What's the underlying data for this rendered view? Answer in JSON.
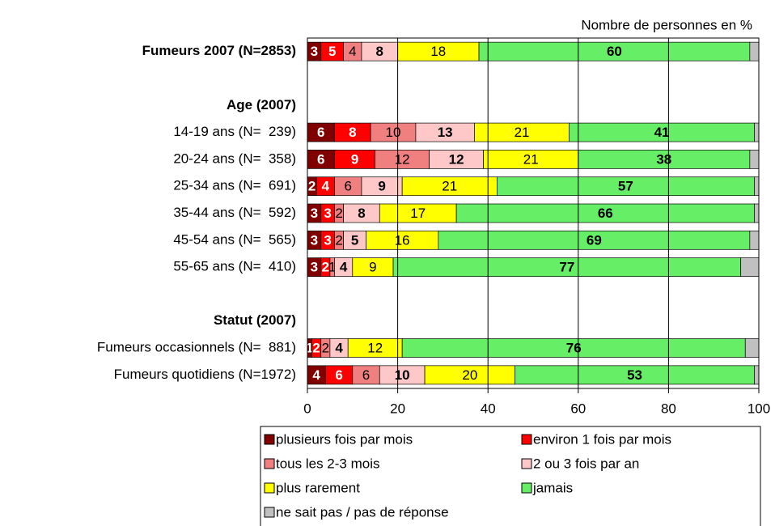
{
  "chart_data": {
    "type": "stacked_barh",
    "axis_title": "Nombre de personnes en %",
    "categories": [
      "Fumeurs 2007 (N=2853)",
      null,
      "Age (2007)",
      "14-19 ans (N=  239)",
      "20-24 ans (N=  358)",
      "25-34 ans (N=  691)",
      "35-44 ans (N=  592)",
      "45-54 ans (N=  565)",
      "55-65 ans (N=  410)",
      null,
      "Statut (2007)",
      "Fumeurs occasionnels (N=  881)",
      "Fumeurs quotidiens (N=1972)"
    ],
    "series": [
      {
        "name": "plusieurs fois par mois",
        "color": "#800000",
        "labels": true,
        "values": [
          3,
          null,
          null,
          6,
          6,
          2,
          3,
          3,
          3,
          null,
          null,
          1,
          4
        ]
      },
      {
        "name": "environ 1 fois par mois",
        "color": "#ff0000",
        "labels": true,
        "values": [
          5,
          null,
          null,
          8,
          9,
          4,
          3,
          3,
          2,
          null,
          null,
          2,
          6
        ]
      },
      {
        "name": "tous les 2-3 mois",
        "color": "#f08080",
        "labels": true,
        "values": [
          4,
          null,
          null,
          10,
          12,
          6,
          2,
          2,
          1,
          null,
          null,
          2,
          6
        ]
      },
      {
        "name": "2 ou 3 fois par an",
        "color": "#ffc8c8",
        "labels": true,
        "values": [
          8,
          null,
          null,
          13,
          12,
          9,
          8,
          5,
          4,
          null,
          null,
          4,
          10
        ]
      },
      {
        "name": "plus rarement",
        "color": "#ffff00",
        "labels": true,
        "values": [
          18,
          null,
          null,
          21,
          21,
          21,
          17,
          16,
          9,
          null,
          null,
          12,
          20
        ]
      },
      {
        "name": "jamais",
        "color": "#66ee66",
        "labels": true,
        "values": [
          60,
          null,
          null,
          41,
          38,
          57,
          66,
          69,
          77,
          null,
          null,
          76,
          53
        ]
      },
      {
        "name": "ne sait pas / pas de réponse",
        "color": "#c0c0c0",
        "labels": false,
        "values": [
          2,
          null,
          null,
          1,
          2,
          1,
          1,
          2,
          4,
          null,
          null,
          3,
          1
        ]
      }
    ],
    "xlim": [
      0,
      100
    ],
    "xticks": [
      0,
      20,
      40,
      60,
      80,
      100
    ],
    "grid": true
  }
}
